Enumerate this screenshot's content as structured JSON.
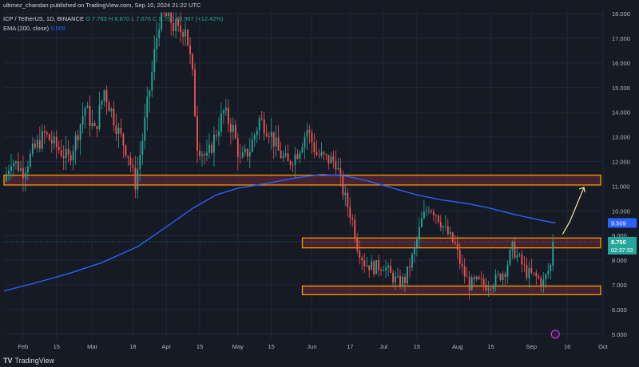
{
  "header": {
    "published_by": "ultimez_chandan published on TradingView.com, Sep 10, 2024 21:22 UTC",
    "symbol_line": "ICP / TetherUS, 1D, BINANCE",
    "ohlc": [
      "O 7.783",
      "H 8.870",
      "L 7.676",
      "C 8.750",
      "+0.967 (+12.42%)"
    ],
    "ema_label": "EMA (200, close)",
    "ema_value": "9.509"
  },
  "branding": {
    "name": "TradingView",
    "logo": "TV"
  },
  "colors": {
    "background": "#161a25",
    "up": "#26a69a",
    "down": "#ef5350",
    "ema": "#2962ff",
    "zone_fill": "#6b2a3a",
    "zone_border": "#ff9800",
    "arrow": "#f5e9a0",
    "grid": "#232733",
    "text": "#b2b5be"
  },
  "chart_data": {
    "type": "candlestick",
    "title": "ICP / TetherUS, 1D, BINANCE",
    "x_tick_labels": [
      "Feb",
      "15",
      "Mar",
      "18",
      "Apr",
      "15",
      "May",
      "15",
      "Jun",
      "17",
      "Jul",
      "15",
      "Aug",
      "15",
      "Sep",
      "16",
      "Oct"
    ],
    "x_tick_dates": [
      "2024-02-01",
      "2024-02-15",
      "2024-03-01",
      "2024-03-18",
      "2024-04-01",
      "2024-04-15",
      "2024-05-01",
      "2024-05-15",
      "2024-06-01",
      "2024-06-17",
      "2024-07-01",
      "2024-07-15",
      "2024-08-01",
      "2024-08-15",
      "2024-09-01",
      "2024-09-16",
      "2024-10-01"
    ],
    "x_range": [
      "2024-01-24",
      "2024-10-01"
    ],
    "y_tick_labels": [
      "18.000",
      "17.000",
      "16.000",
      "15.000",
      "14.000",
      "13.000",
      "12.000",
      "11.000",
      "10.000",
      "9.000",
      "8.000",
      "7.000",
      "6.000",
      "5.000"
    ],
    "ylim": [
      4.8,
      18.1
    ],
    "grid": true,
    "last_price": {
      "label": "8.750",
      "countdown": "02:37:33",
      "value": 8.75
    },
    "ema_last": {
      "label": "9.509",
      "value": 9.509
    },
    "zones": [
      {
        "y_low": 11.05,
        "y_high": 11.45,
        "x_start": "2024-01-24",
        "x_end": "2024-09-30"
      },
      {
        "y_low": 8.5,
        "y_high": 8.9,
        "x_start": "2024-05-28",
        "x_end": "2024-09-30"
      },
      {
        "y_low": 6.6,
        "y_high": 6.95,
        "x_start": "2024-05-28",
        "x_end": "2024-09-30"
      }
    ],
    "arrow_path": [
      [
        "2024-09-14",
        9.05
      ],
      [
        "2024-09-17",
        9.55
      ],
      [
        "2024-09-23",
        10.95
      ]
    ],
    "ema_path": [
      [
        "2024-01-24",
        6.75
      ],
      [
        "2024-02-05",
        7.05
      ],
      [
        "2024-02-20",
        7.45
      ],
      [
        "2024-03-05",
        7.9
      ],
      [
        "2024-03-20",
        8.55
      ],
      [
        "2024-04-01",
        9.35
      ],
      [
        "2024-04-12",
        10.1
      ],
      [
        "2024-04-22",
        10.65
      ],
      [
        "2024-05-01",
        10.92
      ],
      [
        "2024-05-15",
        11.15
      ],
      [
        "2024-05-25",
        11.33
      ],
      [
        "2024-06-05",
        11.48
      ],
      [
        "2024-06-15",
        11.42
      ],
      [
        "2024-06-25",
        11.2
      ],
      [
        "2024-07-05",
        10.92
      ],
      [
        "2024-07-15",
        10.65
      ],
      [
        "2024-07-25",
        10.45
      ],
      [
        "2024-08-05",
        10.3
      ],
      [
        "2024-08-15",
        10.1
      ],
      [
        "2024-08-25",
        9.85
      ],
      [
        "2024-09-05",
        9.62
      ],
      [
        "2024-09-11",
        9.509
      ]
    ],
    "close_path": [
      [
        "2024-01-24",
        11.2
      ],
      [
        "2024-01-27",
        12.1
      ],
      [
        "2024-02-01",
        11.6
      ],
      [
        "2024-02-05",
        12.4
      ],
      [
        "2024-02-10",
        13.1
      ],
      [
        "2024-02-15",
        12.6
      ],
      [
        "2024-02-20",
        12.1
      ],
      [
        "2024-02-23",
        12.9
      ],
      [
        "2024-02-27",
        14.2
      ],
      [
        "2024-03-02",
        13.2
      ],
      [
        "2024-03-06",
        14.9
      ],
      [
        "2024-03-12",
        13.2
      ],
      [
        "2024-03-16",
        12.3
      ],
      [
        "2024-03-19",
        11.1
      ],
      [
        "2024-03-22",
        12.9
      ],
      [
        "2024-03-26",
        15.6
      ],
      [
        "2024-03-29",
        17.8
      ],
      [
        "2024-04-02",
        17.9
      ],
      [
        "2024-04-06",
        17.2
      ],
      [
        "2024-04-09",
        17.6
      ],
      [
        "2024-04-12",
        15.4
      ],
      [
        "2024-04-14",
        12.7
      ],
      [
        "2024-04-18",
        12.1
      ],
      [
        "2024-04-22",
        13.2
      ],
      [
        "2024-04-25",
        14.0
      ],
      [
        "2024-04-29",
        13.3
      ],
      [
        "2024-05-02",
        12.0
      ],
      [
        "2024-05-06",
        12.5
      ],
      [
        "2024-05-10",
        13.7
      ],
      [
        "2024-05-14",
        13.3
      ],
      [
        "2024-05-18",
        12.4
      ],
      [
        "2024-05-22",
        11.9
      ],
      [
        "2024-05-26",
        12.4
      ],
      [
        "2024-05-30",
        13.3
      ],
      [
        "2024-06-03",
        12.3
      ],
      [
        "2024-06-07",
        12.1
      ],
      [
        "2024-06-11",
        12.0
      ],
      [
        "2024-06-14",
        10.8
      ],
      [
        "2024-06-18",
        9.6
      ],
      [
        "2024-06-20",
        8.6
      ],
      [
        "2024-06-23",
        7.9
      ],
      [
        "2024-06-27",
        7.7
      ],
      [
        "2024-07-01",
        7.8
      ],
      [
        "2024-07-04",
        7.4
      ],
      [
        "2024-07-07",
        7.1
      ],
      [
        "2024-07-10",
        7.2
      ],
      [
        "2024-07-14",
        8.4
      ],
      [
        "2024-07-17",
        9.6
      ],
      [
        "2024-07-20",
        10.2
      ],
      [
        "2024-07-23",
        9.9
      ],
      [
        "2024-07-27",
        9.2
      ],
      [
        "2024-07-31",
        8.6
      ],
      [
        "2024-08-03",
        7.6
      ],
      [
        "2024-08-06",
        7.0
      ],
      [
        "2024-08-09",
        7.1
      ],
      [
        "2024-08-13",
        7.0
      ],
      [
        "2024-08-17",
        7.2
      ],
      [
        "2024-08-21",
        7.6
      ],
      [
        "2024-08-24",
        8.5
      ],
      [
        "2024-08-27",
        8.0
      ],
      [
        "2024-08-30",
        7.5
      ],
      [
        "2024-09-03",
        7.3
      ],
      [
        "2024-09-06",
        7.1
      ],
      [
        "2024-09-09",
        7.78
      ],
      [
        "2024-09-10",
        8.75
      ]
    ]
  }
}
